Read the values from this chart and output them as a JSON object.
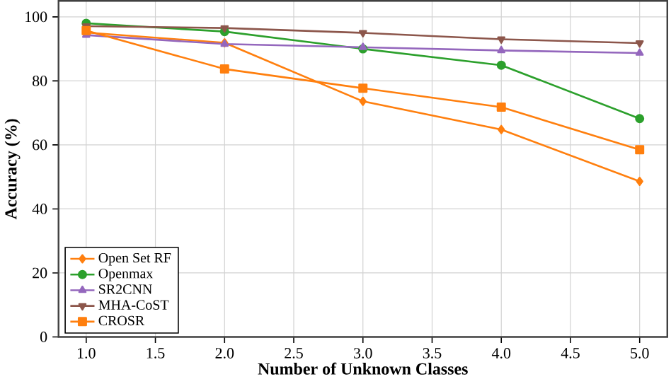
{
  "chart_data": {
    "type": "line",
    "xlabel": "Number of Unknown Classes",
    "ylabel": "Accuracy (%)",
    "x": [
      1,
      2,
      3,
      4,
      5
    ],
    "series": [
      {
        "name": "Open Set RF",
        "color": "#ff7f0e",
        "marker": "diamond",
        "values": [
          95.1,
          91.9,
          73.6,
          64.8,
          48.6
        ]
      },
      {
        "name": "Openmax",
        "color": "#2ca02c",
        "marker": "circle",
        "values": [
          98.0,
          95.4,
          90.0,
          84.9,
          68.2
        ]
      },
      {
        "name": "SR2CNN",
        "color": "#9467bd",
        "marker": "triangle",
        "values": [
          94.3,
          91.5,
          90.5,
          89.5,
          88.7
        ]
      },
      {
        "name": "MHA-CoST",
        "color": "#8c564b",
        "marker": "triangle_down",
        "values": [
          97.1,
          96.5,
          95.0,
          93.0,
          91.8
        ]
      },
      {
        "name": "CROSR",
        "color": "#ff7f0e",
        "marker": "square",
        "values": [
          95.7,
          83.7,
          77.7,
          71.8,
          58.5
        ]
      }
    ],
    "xlim": [
      0.8,
      5.2
    ],
    "ylim": [
      0,
      105
    ],
    "xticks": [
      {
        "value": 1,
        "label": "1.0"
      },
      {
        "value": 1.5,
        "label": "1.5"
      },
      {
        "value": 2,
        "label": "2.0"
      },
      {
        "value": 2.5,
        "label": "2.5"
      },
      {
        "value": 3,
        "label": "3.0"
      },
      {
        "value": 3.5,
        "label": "3.5"
      },
      {
        "value": 4,
        "label": "4.0"
      },
      {
        "value": 4.5,
        "label": "4.5"
      },
      {
        "value": 5,
        "label": "5.0"
      }
    ],
    "yticks": [
      0,
      20,
      40,
      60,
      80,
      100
    ],
    "grid": true,
    "legend": "bottom left",
    "line_style": "solid"
  }
}
